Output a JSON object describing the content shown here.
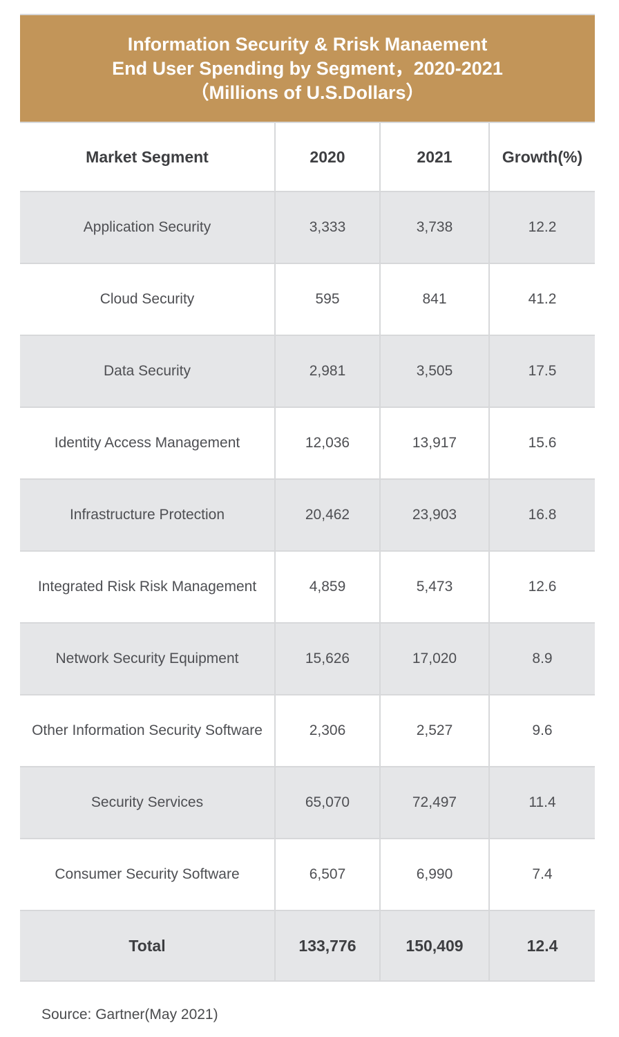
{
  "title": {
    "line1": "Information Security & Rrisk Manaement",
    "line2": "End User Spending by Segment，2020-2021",
    "line3": "（Millions of U.S.Dollars）"
  },
  "colors": {
    "header_band": "#c29559",
    "shaded_row": "#e5e6e8",
    "grid_line": "#d7d8da",
    "title_text": "#ffffff",
    "bold_text": "#3d3e41",
    "body_text": "#4e4f53"
  },
  "table": {
    "columns": [
      "Market Segment",
      "2020",
      "2021",
      "Growth(%)"
    ],
    "rows": [
      {
        "segment": "Application Security",
        "y2020": "3,333",
        "y2021": "3,738",
        "growth": "12.2"
      },
      {
        "segment": "Cloud Security",
        "y2020": "595",
        "y2021": "841",
        "growth": "41.2"
      },
      {
        "segment": "Data Security",
        "y2020": "2,981",
        "y2021": "3,505",
        "growth": "17.5"
      },
      {
        "segment": "Identity Access Management",
        "y2020": "12,036",
        "y2021": "13,917",
        "growth": "15.6"
      },
      {
        "segment": "Infrastructure Protection",
        "y2020": "20,462",
        "y2021": "23,903",
        "growth": "16.8"
      },
      {
        "segment": "Integrated Risk Risk Management",
        "y2020": "4,859",
        "y2021": "5,473",
        "growth": "12.6"
      },
      {
        "segment": "Network Security Equipment",
        "y2020": "15,626",
        "y2021": "17,020",
        "growth": "8.9"
      },
      {
        "segment": "Other Information Security Software",
        "y2020": "2,306",
        "y2021": "2,527",
        "growth": "9.6"
      },
      {
        "segment": "Security Services",
        "y2020": "65,070",
        "y2021": "72,497",
        "growth": "11.4"
      },
      {
        "segment": "Consumer Security Software",
        "y2020": "6,507",
        "y2021": "6,990",
        "growth": "7.4"
      }
    ],
    "total": {
      "label": "Total",
      "y2020": "133,776",
      "y2021": "150,409",
      "growth": "12.4"
    }
  },
  "footer": {
    "source": "Source: Gartner(May 2021)"
  },
  "chart_data": {
    "type": "table",
    "title": "Information Security & Rrisk Manaement End User Spending by Segment，2020-2021（Millions of U.S.Dollars）",
    "columns": [
      "Market Segment",
      "2020",
      "2021",
      "Growth(%)"
    ],
    "rows": [
      [
        "Application Security",
        3333,
        3738,
        12.2
      ],
      [
        "Cloud Security",
        595,
        841,
        41.2
      ],
      [
        "Data Security",
        2981,
        3505,
        17.5
      ],
      [
        "Identity Access Management",
        12036,
        13917,
        15.6
      ],
      [
        "Infrastructure Protection",
        20462,
        23903,
        16.8
      ],
      [
        "Integrated Risk Risk Management",
        4859,
        5473,
        12.6
      ],
      [
        "Network Security Equipment",
        15626,
        17020,
        8.9
      ],
      [
        "Other Information Security Software",
        2306,
        2527,
        9.6
      ],
      [
        "Security Services",
        65070,
        72497,
        11.4
      ],
      [
        "Consumer Security Software",
        6507,
        6990,
        7.4
      ],
      [
        "Total",
        133776,
        150409,
        12.4
      ]
    ],
    "source": "Source: Gartner(May 2021)"
  }
}
